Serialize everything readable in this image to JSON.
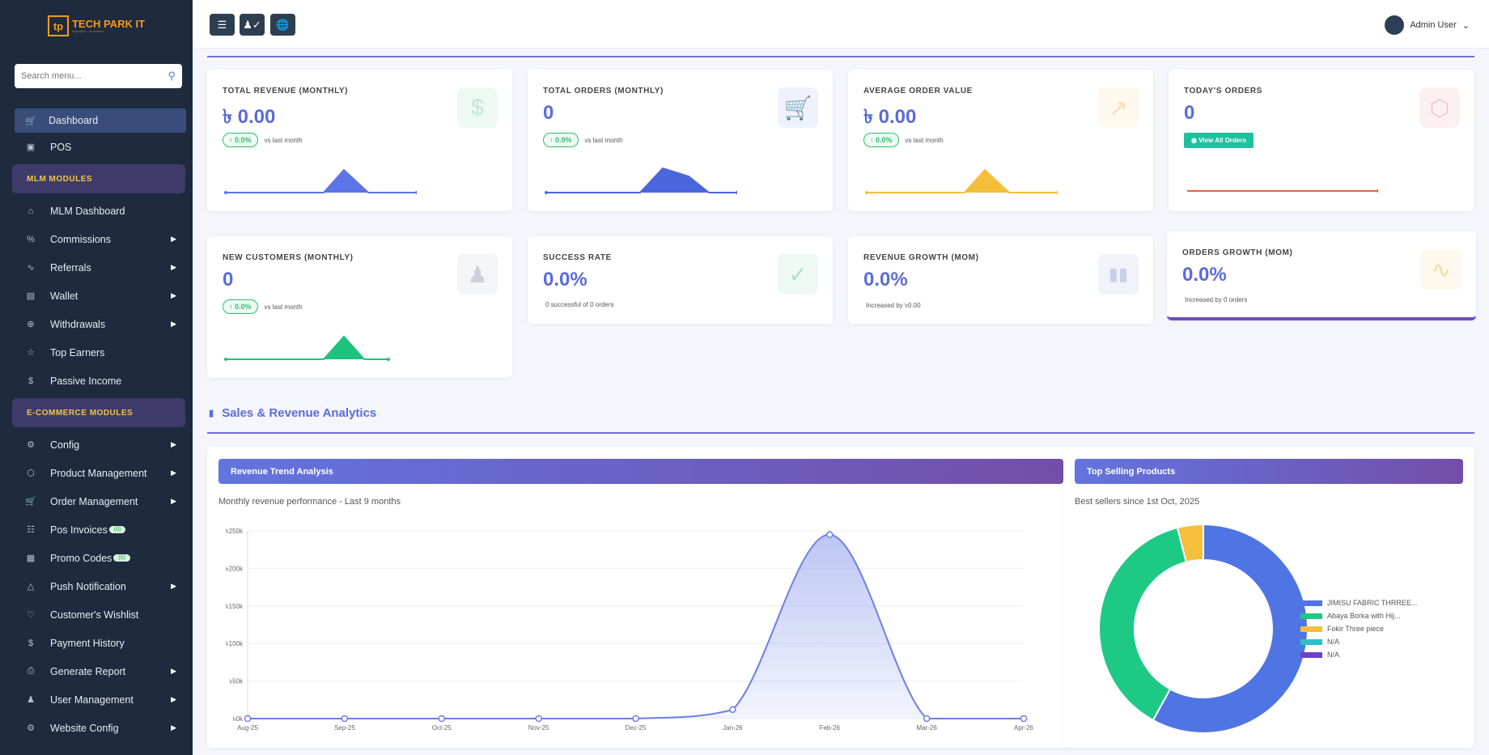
{
  "brand": {
    "logo_mark": "tp",
    "name": "TECH PARK IT",
    "tagline": "Ingenious · Innovative"
  },
  "search": {
    "placeholder": "Search menu..."
  },
  "nav": {
    "dashboard": "Dashboard",
    "pos": "POS",
    "mlm_header": "MLM MODULES",
    "mlm_dashboard": "MLM Dashboard",
    "commissions": "Commissions",
    "referrals": "Referrals",
    "wallet": "Wallet",
    "withdrawals": "Withdrawals",
    "top_earners": "Top Earners",
    "passive_income": "Passive Income",
    "ecom_header": "E-COMMERCE MODULES",
    "config": "Config",
    "product_management": "Product Management",
    "order_management": "Order Management",
    "pos_invoices": "Pos Invoices",
    "pos_invoices_badge": "(0)",
    "promo_codes": "Promo Codes",
    "promo_codes_badge": "(0)",
    "push_notification": "Push Notification",
    "customers_wishlist": "Customer's Wishlist",
    "payment_history": "Payment History",
    "generate_report": "Generate Report",
    "user_management": "User Management",
    "website_config": "Website Config"
  },
  "user": {
    "name": "Admin User"
  },
  "stats": {
    "total_revenue": {
      "title": "TOTAL REVENUE (MONTHLY)",
      "value": "৳ 0.00",
      "delta": "0.0%",
      "delta_text": "vs last month"
    },
    "total_orders": {
      "title": "TOTAL ORDERS (MONTHLY)",
      "value": "0",
      "delta": "0.0%",
      "delta_text": "vs last month"
    },
    "avg_order": {
      "title": "AVERAGE ORDER VALUE",
      "value": "৳ 0.00",
      "delta": "0.0%",
      "delta_text": "vs last month"
    },
    "todays_orders": {
      "title": "TODAY'S ORDERS",
      "value": "0",
      "button": "View All Orders"
    },
    "new_customers": {
      "title": "NEW CUSTOMERS (MONTHLY)",
      "value": "0",
      "delta": "0.0%",
      "delta_text": "vs last month"
    },
    "success_rate": {
      "title": "SUCCESS RATE",
      "value": "0.0%",
      "sub": "0 successful of 0 orders"
    },
    "revenue_growth": {
      "title": "REVENUE GROWTH (MOM)",
      "value": "0.0%",
      "sub": "Increased by ৳0.00"
    },
    "orders_growth": {
      "title": "ORDERS GROWTH (MOM)",
      "value": "0.0%",
      "sub": "Increased by 0 orders"
    }
  },
  "colors": {
    "accent": "#5b6bdc",
    "green": "#1ec27c",
    "yellow": "#f4bf3a",
    "red": "#e8604c"
  },
  "section": {
    "title": "Sales & Revenue Analytics"
  },
  "revenue_panel": {
    "title": "Revenue Trend Analysis",
    "subtitle": "Monthly revenue performance - Last 9 months"
  },
  "products_panel": {
    "title": "Top Selling Products",
    "subtitle": "Best sellers since 1st Oct, 2025"
  },
  "chart_data": [
    {
      "type": "area",
      "title": "Revenue Trend Analysis",
      "x": [
        "Aug-25",
        "Sep-25",
        "Oct-25",
        "Nov-25",
        "Dec-25",
        "Jan-26",
        "Feb-26",
        "Mar-26",
        "Apr-26"
      ],
      "values": [
        0,
        0,
        0,
        0,
        0,
        12000,
        245000,
        0,
        0
      ],
      "y_ticks": [
        "৳0k",
        "৳50k",
        "৳100k",
        "৳150k",
        "৳200k",
        "৳250k"
      ],
      "ylim": [
        0,
        250000
      ],
      "color": "#6b7fe6",
      "grid": true
    },
    {
      "type": "pie",
      "title": "Top Selling Products",
      "labels": [
        "JIMISU FABRIC THRREE...",
        "Abaya Borka with Hij...",
        "Fokir Three piece",
        "N/A",
        "N/A"
      ],
      "values": [
        58,
        38,
        4,
        0,
        0
      ],
      "colors": [
        "#4f74e3",
        "#1ec986",
        "#f4bf3a",
        "#2fbfc9",
        "#6f3fc9"
      ],
      "legend": "right"
    }
  ]
}
